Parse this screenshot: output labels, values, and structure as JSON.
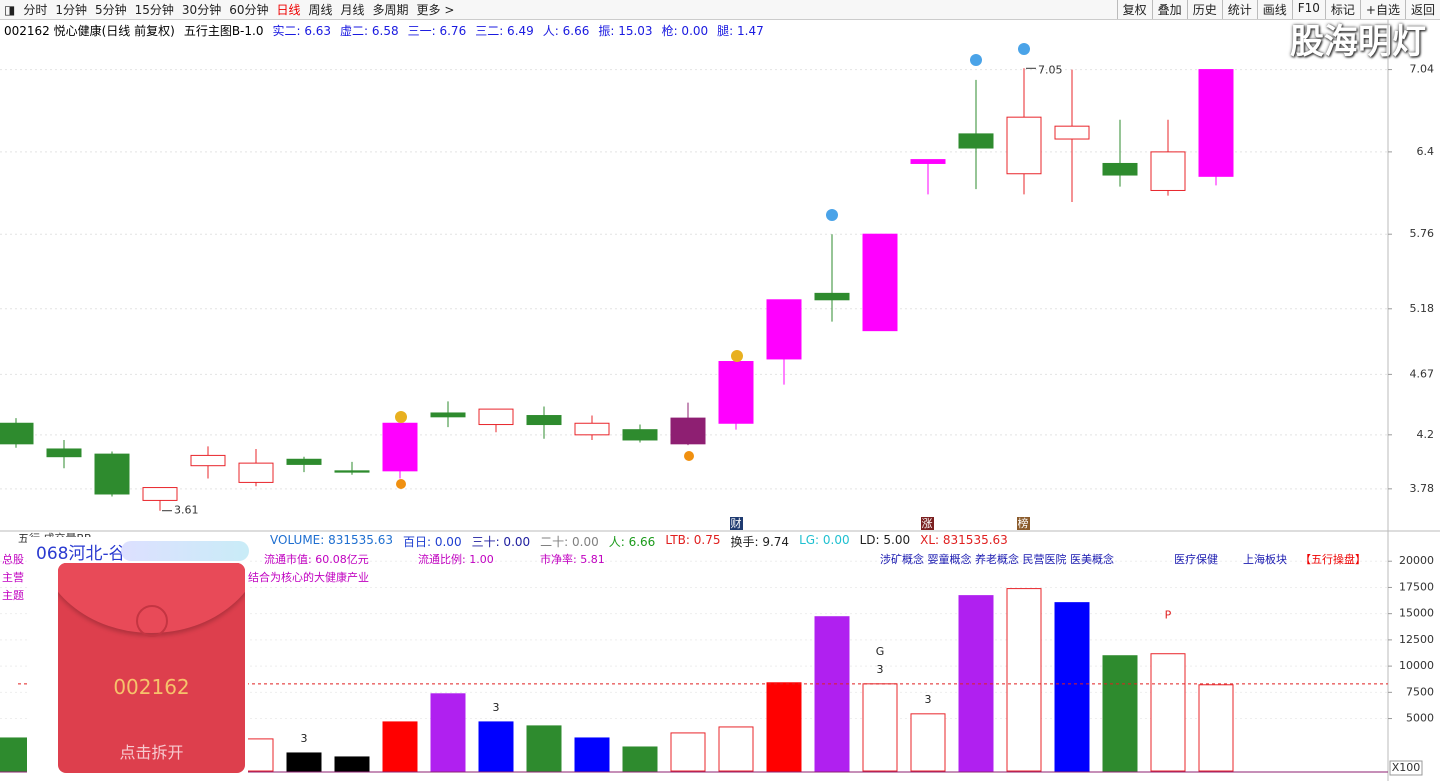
{
  "toolbar": {
    "left": [
      "分时",
      "1分钟",
      "5分钟",
      "15分钟",
      "30分钟",
      "60分钟",
      "日线",
      "周线",
      "月线",
      "多周期",
      "更多 >"
    ],
    "right": [
      "复权",
      "叠加",
      "历史",
      "统计",
      "画线",
      "F10",
      "标记",
      "+自选",
      "返回"
    ]
  },
  "watermark": "股海明灯",
  "header": {
    "stock": "002162 悦心健康(日线 前复权)",
    "indicator": "五行主图B-1.0",
    "items": [
      "实二: 6.63",
      "虚二: 6.58",
      "三一: 6.76",
      "三二: 6.49",
      "人: 6.66",
      "振: 15.03",
      "枪: 0.00",
      "腿: 1.47"
    ]
  },
  "event_markers": [
    "财",
    "涨",
    "榜"
  ],
  "volume_header": {
    "name": "五行 成交量BB",
    "items": [
      {
        "text": "VOLUME: 831535.63",
        "color": "#1f6fd0"
      },
      {
        "text": "百日: 0.00",
        "color": "#1f3fd0"
      },
      {
        "text": "三十: 0.00",
        "color": "#2020a0"
      },
      {
        "text": "二十: 0.00",
        "color": "#808080"
      },
      {
        "text": "人: 6.66",
        "color": "#1a9a1a"
      },
      {
        "text": "LTB: 0.75",
        "color": "#e02020"
      },
      {
        "text": "换手: 9.74",
        "color": "#222222"
      },
      {
        "text": "LG: 0.00",
        "color": "#20c0d0"
      },
      {
        "text": "LD: 5.00",
        "color": "#222222"
      },
      {
        "text": "XL: 831535.63",
        "color": "#e02020"
      }
    ]
  },
  "info": {
    "labels": [
      "总股",
      "主营",
      "主题"
    ],
    "market": [
      "流通市值:   60.08亿元",
      "流通比例:   1.00",
      "市净率:   5.81"
    ],
    "business": "结合为核心的大健康产业",
    "concepts": "涉矿概念 婴童概念 养老概念 民营医院 医美概念",
    "sector": "医疗保健",
    "region": "上海板块",
    "tag": "【五行操盘】"
  },
  "overlay": {
    "title": "068河北-谷",
    "code": "002162",
    "action": "点击拆开"
  },
  "scale_label": "X100",
  "chart_data": [
    {
      "type": "candlestick",
      "open": [
        4.29,
        4.09,
        4.05,
        3.69,
        3.96,
        3.83,
        4.01,
        3.92,
        3.92,
        4.37,
        4.28,
        4.35,
        4.2,
        4.24,
        4.13,
        4.29,
        4.79,
        5.3,
        5.01,
        6.31,
        6.54,
        6.23,
        6.5,
        6.31,
        6.1,
        6.21
      ],
      "high": [
        4.33,
        4.16,
        4.07,
        3.79,
        4.11,
        4.09,
        4.03,
        3.99,
        4.29,
        4.46,
        4.4,
        4.42,
        4.35,
        4.28,
        4.45,
        4.77,
        5.25,
        5.76,
        5.76,
        6.34,
        6.96,
        7.05,
        7.04,
        6.65,
        6.65,
        7.04
      ],
      "low": [
        4.1,
        3.94,
        3.72,
        3.61,
        3.86,
        3.8,
        3.91,
        3.89,
        3.86,
        4.26,
        4.22,
        4.17,
        4.16,
        4.14,
        4.12,
        4.24,
        4.59,
        5.08,
        5.01,
        6.07,
        6.11,
        6.07,
        6.01,
        6.13,
        6.06,
        6.14
      ],
      "close": [
        4.13,
        4.03,
        3.74,
        3.79,
        4.04,
        3.98,
        3.97,
        3.91,
        4.29,
        4.34,
        4.4,
        4.28,
        4.29,
        4.16,
        4.33,
        4.77,
        5.25,
        5.25,
        5.76,
        6.34,
        6.43,
        6.67,
        6.6,
        6.22,
        6.4,
        7.04
      ],
      "colors": [
        "#2e8b2e",
        "#2e8b2e",
        "#2e8b2e",
        "#e8242a",
        "#e8242a",
        "#e8242a",
        "#2e8b2e",
        "#2e8b2e",
        "#ff00ff",
        "#2e8b2e",
        "#e8242a",
        "#2e8b2e",
        "#e8242a",
        "#2e8b2e",
        "#8e1f72",
        "#ff00ff",
        "#ff00ff",
        "#2e8b2e",
        "#ff00ff",
        "#ff00ff",
        "#2e8b2e",
        "#e8242a",
        "#e8242a",
        "#2e8b2e",
        "#e8242a",
        "#ff00ff"
      ],
      "hollow": [
        false,
        false,
        false,
        true,
        true,
        true,
        false,
        false,
        false,
        false,
        true,
        false,
        true,
        false,
        false,
        false,
        false,
        false,
        false,
        false,
        false,
        true,
        true,
        false,
        true,
        false
      ],
      "extreme_labels": [
        {
          "series": "low",
          "index": 3
        },
        {
          "series": "high",
          "index": 21
        }
      ],
      "ylim": [
        3.46,
        7.27
      ],
      "yticks": [
        3.78,
        4.2,
        4.67,
        5.18,
        5.76,
        6.4,
        7.04
      ],
      "grid": true
    },
    {
      "type": "bar",
      "values": [
        3150,
        null,
        null,
        null,
        null,
        3060,
        1720,
        1340,
        4680,
        7360,
        4680,
        4300,
        3150,
        2290,
        3630,
        4200,
        8410,
        14710,
        8310,
        5450,
        16720,
        17390,
        16050,
        10990,
        11180,
        8220
      ],
      "colors": [
        "#2e8b2e",
        null,
        null,
        null,
        null,
        "#e8242a",
        "#000000",
        "#000000",
        "#ff0000",
        "#b020f0",
        "#0000ff",
        "#2e8b2e",
        "#0000ff",
        "#2e8b2e",
        "#e8242a",
        "#e8242a",
        "#ff0000",
        "#b020f0",
        "#e8242a",
        "#e8242a",
        "#b020f0",
        "#e8242a",
        "#0000ff",
        "#2e8b2e",
        "#e8242a",
        "#e8242a"
      ],
      "hollow": [
        false,
        false,
        false,
        false,
        false,
        true,
        false,
        false,
        false,
        false,
        false,
        false,
        false,
        false,
        true,
        true,
        false,
        false,
        true,
        true,
        false,
        true,
        false,
        false,
        true,
        true
      ],
      "bar_labels": [
        null,
        null,
        null,
        null,
        null,
        null,
        "3",
        null,
        null,
        null,
        "3",
        null,
        null,
        null,
        null,
        null,
        null,
        null,
        "3",
        "3",
        null,
        null,
        null,
        null,
        null,
        null
      ],
      "upper_labels": [
        null,
        null,
        null,
        null,
        null,
        null,
        null,
        null,
        null,
        null,
        null,
        null,
        null,
        null,
        null,
        null,
        null,
        null,
        "G",
        null,
        null,
        null,
        null,
        null,
        "P",
        null
      ],
      "reference_value": 8310,
      "ylim": [
        0,
        22500
      ],
      "yticks": [
        5000,
        7500,
        10000,
        12500,
        15000,
        17500,
        20000
      ],
      "grid": true
    }
  ]
}
